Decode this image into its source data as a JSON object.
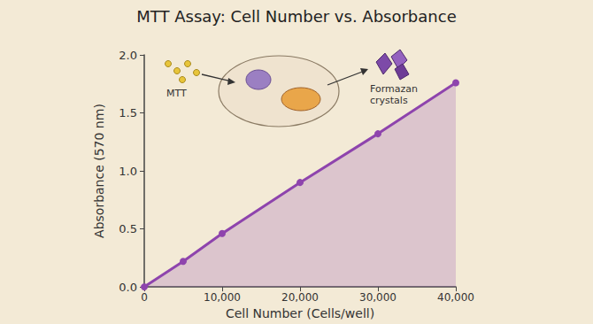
{
  "chart_data": {
    "type": "line",
    "title": "MTT Assay: Cell Number vs. Absorbance",
    "x_label": "Cell Number (Cells/well)",
    "y_label": "Absorbance (570 nm)",
    "x": [
      0,
      5000,
      10000,
      20000,
      30000,
      40000
    ],
    "values": [
      0,
      0.22,
      0.46,
      0.9,
      1.32,
      1.76
    ],
    "color": "#8e44ad",
    "marker": "circle",
    "xlim": [
      0,
      40000
    ],
    "xticks": [
      0,
      {
        "value": 10000,
        "label": "10,000"
      },
      {
        "value": 20000,
        "label": "20,000"
      },
      {
        "value": 30000,
        "label": "30,000"
      },
      {
        "value": 40000,
        "label": "40,000"
      }
    ],
    "ylim": [
      0,
      2.0
    ],
    "yticks": [
      {
        "value": 0,
        "label": "0.0"
      },
      0.5,
      {
        "value": 1.0,
        "label": "1.0"
      },
      1.5,
      {
        "value": 2.0,
        "label": "2.0"
      }
    ],
    "grid": false,
    "annotations": [
      "MTT",
      "Formazan crystals"
    ]
  }
}
